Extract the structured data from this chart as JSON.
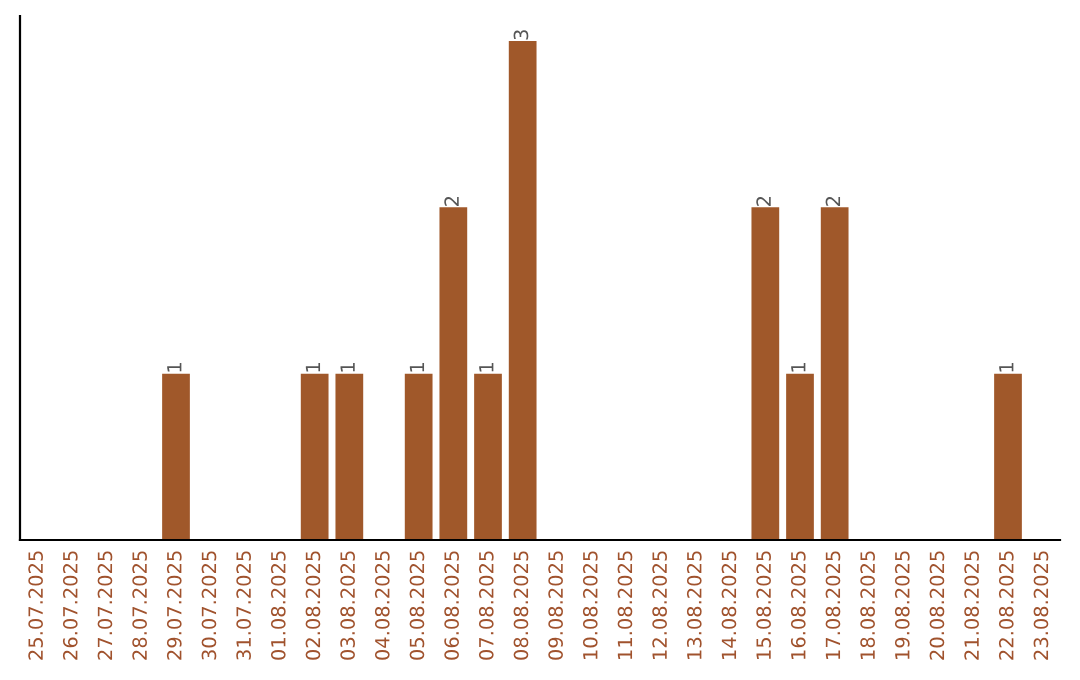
{
  "chart_data": {
    "type": "bar",
    "categories": [
      "25.07.2025",
      "26.07.2025",
      "27.07.2025",
      "28.07.2025",
      "29.07.2025",
      "30.07.2025",
      "31.07.2025",
      "01.08.2025",
      "02.08.2025",
      "03.08.2025",
      "04.08.2025",
      "05.08.2025",
      "06.08.2025",
      "07.08.2025",
      "08.08.2025",
      "09.08.2025",
      "10.08.2025",
      "11.08.2025",
      "12.08.2025",
      "13.08.2025",
      "14.08.2025",
      "15.08.2025",
      "16.08.2025",
      "17.08.2025",
      "18.08.2025",
      "19.08.2025",
      "20.08.2025",
      "21.08.2025",
      "22.08.2025",
      "23.08.2025"
    ],
    "values": [
      0,
      0,
      0,
      0,
      1,
      0,
      0,
      0,
      1,
      1,
      0,
      1,
      2,
      1,
      3,
      0,
      0,
      0,
      0,
      0,
      0,
      2,
      1,
      2,
      0,
      0,
      0,
      0,
      1,
      0
    ],
    "color": "#a0582a",
    "value_labels": [
      null,
      null,
      null,
      null,
      "1",
      null,
      null,
      null,
      "1",
      "1",
      null,
      "1",
      "2",
      "1",
      "3",
      null,
      null,
      null,
      null,
      null,
      null,
      "2",
      "1",
      "2",
      null,
      null,
      null,
      null,
      "1",
      null
    ],
    "tick_labels": "x",
    "ylim": [
      0,
      3.15
    ],
    "grid": false,
    "legend": false
  }
}
